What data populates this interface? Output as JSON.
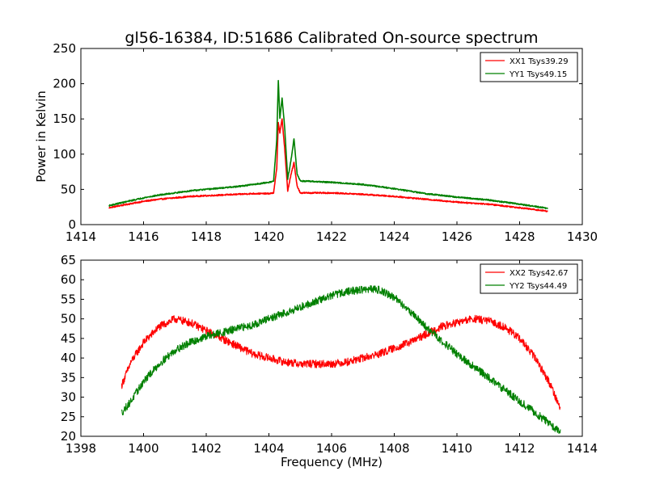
{
  "title": "gl56-16384, ID:51686 Calibrated On-source spectrum",
  "chart_data": [
    {
      "type": "line",
      "ylabel": "Power in Kelvin",
      "xlabel": "",
      "xlim": [
        1414,
        1430
      ],
      "ylim": [
        0,
        250
      ],
      "xticks": [
        1414,
        1416,
        1418,
        1420,
        1422,
        1424,
        1426,
        1428,
        1430
      ],
      "yticks": [
        0,
        50,
        100,
        150,
        200,
        250
      ],
      "grid": false,
      "legend_position": "top-right",
      "series": [
        {
          "name": "XX1 Tsys39.29",
          "color": "#ff0000",
          "x": [
            1414.9,
            1415.5,
            1416.0,
            1416.5,
            1417.0,
            1417.5,
            1418.0,
            1418.5,
            1419.0,
            1419.5,
            1420.0,
            1420.15,
            1420.25,
            1420.3,
            1420.35,
            1420.42,
            1420.5,
            1420.6,
            1420.7,
            1420.8,
            1420.9,
            1421.0,
            1421.5,
            1422.0,
            1423.0,
            1424.0,
            1425.0,
            1426.0,
            1427.0,
            1428.0,
            1428.9
          ],
          "y": [
            24,
            29,
            33,
            36,
            38,
            40,
            41,
            42,
            43,
            44,
            44,
            45,
            80,
            145,
            130,
            150,
            110,
            48,
            70,
            88,
            55,
            45,
            45,
            45,
            43,
            40,
            36,
            32,
            29,
            24,
            19
          ]
        },
        {
          "name": "YY1 Tsys49.15",
          "color": "#008000",
          "x": [
            1414.9,
            1415.5,
            1416.0,
            1416.5,
            1417.0,
            1417.5,
            1418.0,
            1418.5,
            1419.0,
            1419.5,
            1420.0,
            1420.15,
            1420.25,
            1420.3,
            1420.35,
            1420.42,
            1420.5,
            1420.6,
            1420.7,
            1420.8,
            1420.9,
            1421.0,
            1421.5,
            1422.0,
            1423.0,
            1424.0,
            1425.0,
            1426.0,
            1427.0,
            1428.0,
            1428.9
          ],
          "y": [
            27,
            33,
            38,
            42,
            45,
            48,
            50,
            52,
            54,
            57,
            60,
            62,
            120,
            205,
            150,
            180,
            140,
            65,
            90,
            122,
            72,
            62,
            61,
            60,
            57,
            51,
            44,
            39,
            35,
            29,
            23
          ]
        }
      ]
    },
    {
      "type": "line",
      "ylabel": "",
      "xlabel": "Frequency (MHz)",
      "xlim": [
        1398,
        1414
      ],
      "ylim": [
        20,
        65
      ],
      "xticks": [
        1398,
        1400,
        1402,
        1404,
        1406,
        1408,
        1410,
        1412,
        1414
      ],
      "yticks": [
        20,
        25,
        30,
        35,
        40,
        45,
        50,
        55,
        60,
        65
      ],
      "grid": false,
      "legend_position": "top-right",
      "series": [
        {
          "name": "XX2 Tsys42.67",
          "color": "#ff0000",
          "x": [
            1399.3,
            1399.6,
            1400.0,
            1400.5,
            1401.0,
            1401.5,
            1402.0,
            1402.5,
            1403.0,
            1403.5,
            1404.0,
            1404.5,
            1405.0,
            1405.5,
            1406.0,
            1406.5,
            1407.0,
            1407.5,
            1408.0,
            1408.5,
            1409.0,
            1409.5,
            1410.0,
            1410.5,
            1411.0,
            1411.5,
            1412.0,
            1412.5,
            1413.0,
            1413.3
          ],
          "y": [
            33,
            39,
            44,
            48,
            50,
            49,
            47,
            45,
            43,
            41,
            40,
            39,
            38.5,
            38.5,
            38.5,
            39,
            40,
            41,
            42.5,
            44,
            46,
            48,
            49,
            50,
            49.5,
            48,
            45,
            40,
            33,
            27
          ]
        },
        {
          "name": "YY2 Tsys44.49",
          "color": "#008000",
          "x": [
            1399.3,
            1399.6,
            1400.0,
            1400.5,
            1401.0,
            1401.5,
            1402.0,
            1402.5,
            1403.0,
            1403.5,
            1404.0,
            1404.5,
            1405.0,
            1405.5,
            1406.0,
            1406.5,
            1407.0,
            1407.5,
            1408.0,
            1408.5,
            1409.0,
            1409.5,
            1410.0,
            1410.5,
            1411.0,
            1411.5,
            1412.0,
            1412.5,
            1413.0,
            1413.3
          ],
          "y": [
            26,
            29,
            34,
            38.5,
            42,
            44,
            45.5,
            46.5,
            47.5,
            48.5,
            50,
            51.5,
            53,
            54.5,
            56,
            57,
            57.5,
            57.5,
            55.5,
            52,
            48,
            44.5,
            41,
            38,
            35,
            32,
            29,
            26,
            23,
            21
          ]
        }
      ]
    }
  ]
}
